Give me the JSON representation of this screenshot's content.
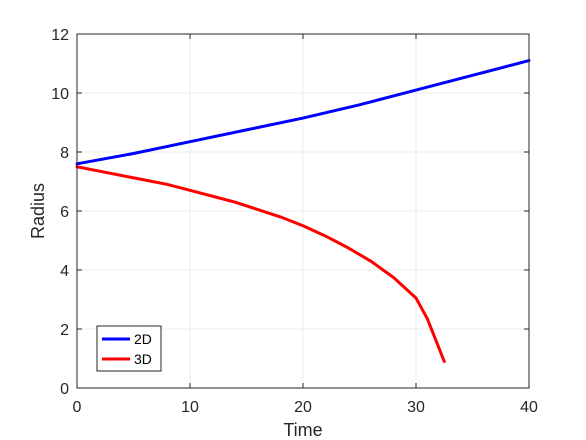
{
  "chart_data": {
    "type": "line",
    "xlabel": "Time",
    "ylabel": "Radius",
    "xlim": [
      0,
      40
    ],
    "ylim": [
      0,
      12
    ],
    "xticks": [
      "0",
      "10",
      "20",
      "30",
      "40"
    ],
    "yticks": [
      "0",
      "2",
      "4",
      "6",
      "8",
      "10",
      "12"
    ],
    "grid": true,
    "legend_placement": "bottom-left",
    "series": [
      {
        "name": "2D",
        "color": "#0000ff",
        "x": [
          0,
          5,
          10,
          15,
          20,
          25,
          30,
          35,
          40
        ],
        "y": [
          7.6,
          7.95,
          8.35,
          8.75,
          9.15,
          9.6,
          10.1,
          10.6,
          11.1
        ]
      },
      {
        "name": "3D",
        "color": "#ff0000",
        "x": [
          0,
          2,
          4,
          6,
          8,
          10,
          12,
          14,
          16,
          18,
          20,
          22,
          24,
          26,
          28,
          30,
          31,
          32.5
        ],
        "y": [
          7.5,
          7.35,
          7.2,
          7.05,
          6.9,
          6.7,
          6.5,
          6.3,
          6.05,
          5.8,
          5.5,
          5.15,
          4.75,
          4.3,
          3.75,
          3.05,
          2.35,
          0.9
        ]
      }
    ]
  }
}
